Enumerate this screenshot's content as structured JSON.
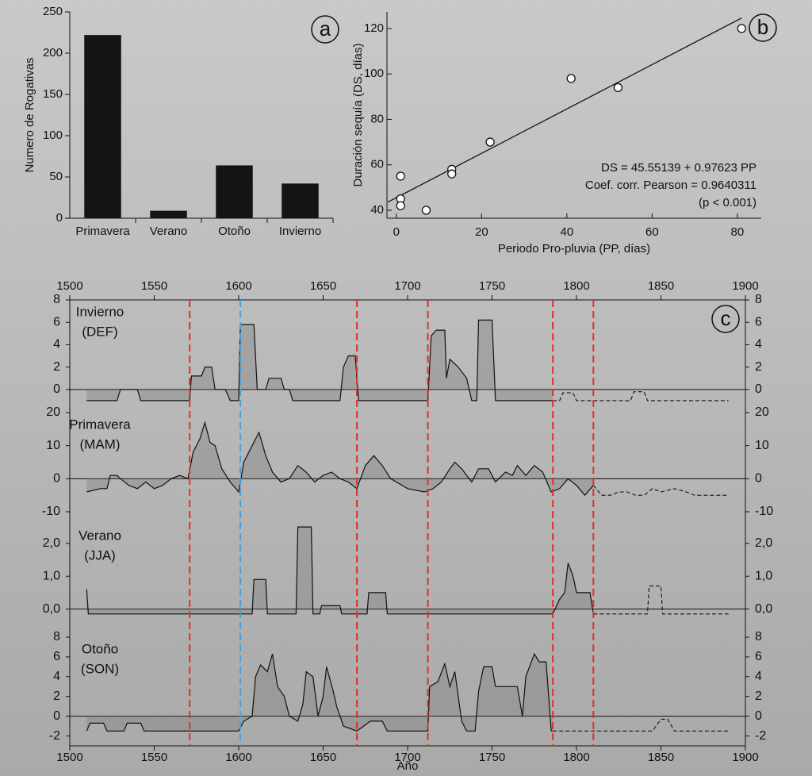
{
  "chart_data": [
    {
      "type": "bar",
      "panel_label": "a",
      "ylabel": "Numero de Rogativas",
      "categories": [
        "Primavera",
        "Verano",
        "Otoño",
        "Invierno"
      ],
      "values": [
        222,
        9,
        64,
        42
      ],
      "color": "#141414",
      "ylim": [
        0,
        250
      ],
      "yticks": [
        0,
        50,
        100,
        150,
        200,
        250
      ]
    },
    {
      "type": "scatter",
      "panel_label": "b",
      "xlabel": "Periodo Pro-pluvia (PP, días)",
      "ylabel": "Duración sequía (DS, días)",
      "x": [
        1,
        1,
        1,
        7,
        13,
        13,
        22,
        41,
        52,
        81
      ],
      "values": [
        55,
        45,
        42,
        40,
        58,
        56,
        70,
        98,
        94,
        120
      ],
      "xlim": [
        -2.2,
        85.6
      ],
      "xticks": [
        0,
        20,
        40,
        60,
        80
      ],
      "ylim": [
        36.5,
        127.3
      ],
      "yticks": [
        40,
        60,
        80,
        100,
        120
      ],
      "fit": {
        "x": [
          -2,
          81
        ],
        "y": [
          43.6,
          124.6
        ]
      },
      "annotations": [
        "DS = 45.55139 + 0.97623 PP",
        "Coef. corr. Pearson = 0.9640311",
        "(p < 0.001)"
      ]
    },
    {
      "type": "line",
      "panel_label": "c",
      "xlabel": "Año",
      "xlim": [
        1500,
        1900
      ],
      "xticks": [
        1500,
        1550,
        1600,
        1650,
        1700,
        1750,
        1800,
        1850,
        1900
      ],
      "markers": [
        {
          "x": 1571,
          "color": "#e0302a"
        },
        {
          "x": 1601,
          "color": "#4aa0d8"
        },
        {
          "x": 1670,
          "color": "#e0302a"
        },
        {
          "x": 1712,
          "color": "#e0302a"
        },
        {
          "x": 1786,
          "color": "#e0302a"
        },
        {
          "x": 1810,
          "color": "#e0302a"
        }
      ],
      "panels": [
        {
          "title": [
            "Invierno",
            "(DEF)"
          ],
          "ylim": [
            -1.5,
            8
          ],
          "yticks": [
            0,
            2,
            4,
            6,
            8
          ],
          "dashed_from": 1786,
          "x": [
            1510,
            1528,
            1530,
            1540,
            1542,
            1571,
            1572,
            1578,
            1580,
            1584,
            1586,
            1592,
            1595,
            1600,
            1601,
            1609,
            1611,
            1616,
            1618,
            1625,
            1627,
            1630,
            1632,
            1660,
            1662,
            1665,
            1669,
            1671,
            1712,
            1714,
            1717,
            1722,
            1723,
            1725,
            1730,
            1735,
            1738,
            1741,
            1742,
            1750,
            1752,
            1786,
            1790,
            1792,
            1798,
            1800,
            1832,
            1834,
            1840,
            1842,
            1890
          ],
          "values": [
            -1,
            -1,
            0,
            0,
            -1,
            -1,
            1.2,
            1.2,
            2,
            2,
            0,
            0,
            -1,
            -1,
            5.8,
            5.8,
            0,
            0,
            1,
            1,
            0,
            0,
            -1,
            -1,
            2,
            3,
            3,
            -1,
            -1,
            4.8,
            5.3,
            5.3,
            1,
            2.7,
            2,
            1,
            -1,
            -1,
            6.2,
            6.2,
            -1,
            -1,
            -1,
            -0.3,
            -0.3,
            -1,
            -1,
            -0.2,
            -0.2,
            -1,
            -1
          ]
        },
        {
          "title": [
            "Primavera",
            "(MAM)"
          ],
          "ylim": [
            -10,
            20
          ],
          "yticks": [
            -10,
            0,
            10,
            20
          ],
          "dashed_from": 1810,
          "x": [
            1510,
            1518,
            1522,
            1524,
            1528,
            1530,
            1535,
            1540,
            1545,
            1550,
            1555,
            1560,
            1565,
            1570,
            1573,
            1577,
            1580,
            1583,
            1586,
            1590,
            1595,
            1600,
            1603,
            1607,
            1612,
            1616,
            1620,
            1625,
            1630,
            1635,
            1640,
            1645,
            1650,
            1655,
            1660,
            1665,
            1670,
            1675,
            1680,
            1685,
            1690,
            1700,
            1710,
            1715,
            1720,
            1725,
            1728,
            1732,
            1738,
            1742,
            1748,
            1752,
            1758,
            1762,
            1765,
            1770,
            1775,
            1780,
            1785,
            1790,
            1795,
            1800,
            1805,
            1810,
            1815,
            1820,
            1825,
            1830,
            1835,
            1840,
            1845,
            1850,
            1858,
            1865,
            1870,
            1890
          ],
          "values": [
            -4,
            -3,
            -3,
            1,
            1,
            0,
            -2,
            -3,
            -1,
            -3,
            -2,
            0,
            1,
            0,
            8,
            12,
            17,
            11,
            10,
            3,
            -1,
            -4,
            5,
            9,
            14,
            7,
            2,
            -1,
            0,
            4,
            2,
            -1,
            1,
            2,
            0,
            -1,
            -3,
            4,
            7,
            4,
            0,
            -3,
            -4,
            -3,
            -1,
            3,
            5,
            3,
            -1,
            3,
            3,
            -1,
            2,
            1,
            4,
            1,
            4,
            2,
            -4,
            -3,
            0,
            -2,
            -5,
            -2,
            -5,
            -5,
            -4,
            -4,
            -5,
            -5,
            -3,
            -4,
            -3,
            -4,
            -5,
            -5
          ]
        },
        {
          "title": [
            "Verano",
            "(JJA)"
          ],
          "ylim": [
            -0.3,
            2.6
          ],
          "yticks": [
            {
              "value": 0,
              "label": "0,0"
            },
            {
              "value": 1,
              "label": "1,0"
            },
            {
              "value": 2,
              "label": "2,0"
            }
          ],
          "dashed_from": 1810,
          "x": [
            1510,
            1511,
            1608,
            1609,
            1616,
            1617,
            1634,
            1635,
            1643,
            1644,
            1648,
            1649,
            1660,
            1661,
            1676,
            1677,
            1687,
            1688,
            1786,
            1790,
            1793,
            1795,
            1798,
            1800,
            1808,
            1810,
            1820,
            1842,
            1843,
            1850,
            1851,
            1890
          ],
          "values": [
            0.6,
            -0.15,
            -0.15,
            0.9,
            0.9,
            -0.15,
            -0.15,
            2.5,
            2.5,
            -0.15,
            -0.15,
            0.1,
            0.1,
            -0.15,
            -0.15,
            0.5,
            0.5,
            -0.15,
            -0.15,
            0.3,
            0.5,
            1.4,
            1,
            0.5,
            0.5,
            -0.15,
            -0.15,
            -0.15,
            0.7,
            0.7,
            -0.15,
            -0.15
          ]
        },
        {
          "title": [
            "Otoño",
            "(SON)"
          ],
          "ylim": [
            -3,
            8
          ],
          "yticks": [
            -2,
            0,
            2,
            4,
            6,
            8
          ],
          "dashed_from": 1786,
          "x": [
            1510,
            1512,
            1520,
            1522,
            1532,
            1534,
            1542,
            1544,
            1600,
            1603,
            1608,
            1610,
            1613,
            1617,
            1620,
            1623,
            1627,
            1630,
            1635,
            1638,
            1640,
            1644,
            1647,
            1650,
            1652,
            1656,
            1658,
            1662,
            1670,
            1678,
            1685,
            1688,
            1712,
            1713,
            1718,
            1722,
            1725,
            1728,
            1732,
            1735,
            1740,
            1742,
            1745,
            1750,
            1752,
            1755,
            1765,
            1768,
            1770,
            1775,
            1778,
            1782,
            1785,
            1786,
            1810,
            1845,
            1850,
            1854,
            1858,
            1890
          ],
          "values": [
            -1.5,
            -0.7,
            -0.7,
            -1.5,
            -1.5,
            -0.7,
            -0.7,
            -1.5,
            -1.5,
            -0.5,
            0,
            4,
            5.2,
            4.5,
            6.3,
            3,
            2,
            0,
            -0.5,
            1.2,
            4.5,
            4,
            0,
            2,
            5,
            2.5,
            1,
            -1,
            -1.5,
            -0.5,
            -0.5,
            -1.5,
            -1.5,
            3,
            3.5,
            5.3,
            3,
            4.5,
            -0.5,
            -1.5,
            -1.5,
            2.5,
            5,
            5,
            3,
            3,
            3,
            0,
            4,
            6.3,
            5.5,
            5.5,
            -1.5,
            -1.5,
            -1.5,
            -1.5,
            -0.3,
            -0.3,
            -1.5,
            -1.5
          ]
        }
      ]
    }
  ]
}
